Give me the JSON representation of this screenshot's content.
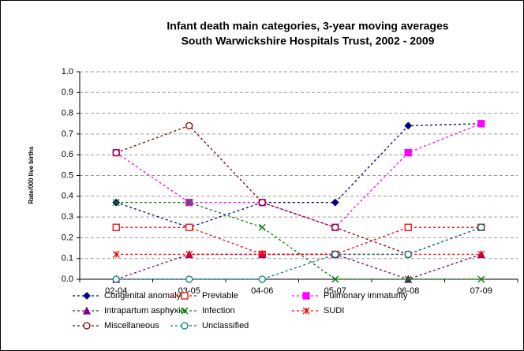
{
  "chart_data": {
    "type": "line",
    "title": "Infant death main categories, 3-year moving averages",
    "subtitle": "South Warwickshire Hospitals Trust, 2002 - 2009",
    "y_label": "Rate/000 live births",
    "categories": [
      "02-04",
      "03-05",
      "04-06",
      "05-07",
      "06-08",
      "07-09"
    ],
    "ylim": [
      0,
      1
    ],
    "yticks": [
      {
        "value": 0,
        "label": "0.0"
      },
      0.1,
      0.2,
      0.3,
      0.4,
      0.5,
      0.6,
      0.7,
      0.8,
      0.9,
      {
        "value": 1,
        "label": "1.0"
      }
    ],
    "grid": true,
    "series": [
      {
        "name": "Congenital anomaly",
        "color": "#000080",
        "marker": "diamond",
        "values": [
          0.37,
          0.25,
          0.37,
          0.37,
          0.74,
          0.75
        ]
      },
      {
        "name": "Previable",
        "color": "#ff0000",
        "marker": "square-open",
        "values": [
          0.25,
          0.25,
          0.12,
          0.12,
          0.25,
          0.25
        ]
      },
      {
        "name": "Pulmonary immaturity",
        "color": "#ff00ff",
        "marker": "square",
        "values": [
          0.61,
          0.37,
          0.37,
          0.25,
          0.61,
          0.75
        ]
      },
      {
        "name": "Intrapartum asphyxia",
        "color": "#800080",
        "marker": "triangle",
        "values": [
          0,
          0.12,
          0.12,
          0.12,
          0,
          0.12
        ]
      },
      {
        "name": "Infection",
        "color": "#008000",
        "marker": "x",
        "values": [
          0.37,
          0.37,
          0.25,
          0,
          0,
          0
        ]
      },
      {
        "name": "SUDI",
        "color": "#ff0000",
        "marker": "asterisk",
        "values": [
          0.12,
          0.12,
          0.12,
          0.12,
          0.12,
          0.12
        ]
      },
      {
        "name": "Miscellaneous",
        "color": "#800000",
        "marker": "circle-open",
        "values": [
          0.61,
          0.74,
          0.37,
          0.25,
          0.12,
          0.25
        ]
      },
      {
        "name": "Unclassified",
        "color": "#008080",
        "marker": "circle-open",
        "values": [
          0,
          0,
          0,
          0.12,
          0.12,
          0.25
        ]
      }
    ]
  }
}
